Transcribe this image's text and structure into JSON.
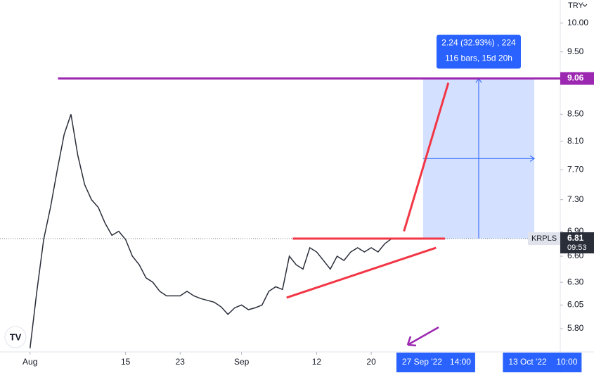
{
  "chart_data": {
    "type": "line",
    "symbol": "KRPLS",
    "currency": "TRY",
    "log_scale": true,
    "x": [
      0,
      1,
      2,
      3,
      4,
      5,
      6,
      7,
      8,
      9,
      10,
      11,
      12,
      13,
      14,
      15,
      16,
      17,
      18,
      19,
      20,
      21,
      22,
      23,
      24,
      25,
      26,
      27,
      28,
      29,
      30,
      31,
      32,
      33,
      34,
      35,
      36,
      37,
      38,
      39,
      40,
      41,
      42,
      43,
      44,
      45,
      46,
      47,
      48,
      49,
      50,
      51,
      52,
      53
    ],
    "series": [
      {
        "color": "#2a2e39",
        "values": [
          5.6,
          6.2,
          6.8,
          7.2,
          7.7,
          8.2,
          8.5,
          7.9,
          7.5,
          7.3,
          7.2,
          7.0,
          6.85,
          6.9,
          6.8,
          6.6,
          6.5,
          6.35,
          6.3,
          6.2,
          6.15,
          6.15,
          6.15,
          6.2,
          6.15,
          6.12,
          6.1,
          6.08,
          6.03,
          5.95,
          6.02,
          6.05,
          6.0,
          6.02,
          6.05,
          6.2,
          6.25,
          6.22,
          6.6,
          6.5,
          6.45,
          6.7,
          6.65,
          6.55,
          6.45,
          6.6,
          6.55,
          6.65,
          6.7,
          6.65,
          6.7,
          6.65,
          6.75,
          6.81
        ]
      }
    ],
    "xlim": [
      -4.4,
      77.7
    ],
    "xticks": [
      {
        "value": 0,
        "label": "Aug"
      },
      {
        "value": 14,
        "label": "15"
      },
      {
        "value": 22,
        "label": "23"
      },
      {
        "value": 31,
        "label": "Sep"
      },
      {
        "value": 42,
        "label": "12"
      },
      {
        "value": 50,
        "label": "20"
      }
    ],
    "ylim": [
      5.565,
      10.42
    ],
    "yticks": [
      {
        "value": 10,
        "label": "10.00"
      },
      {
        "value": 9.5,
        "label": "9.50"
      },
      {
        "value": 8.5,
        "label": "8.50"
      },
      {
        "value": 8.1,
        "label": "8.10"
      },
      {
        "value": 7.7,
        "label": "7.70"
      },
      {
        "value": 7.3,
        "label": "7.30"
      },
      {
        "value": 6.9,
        "label": "6.90"
      },
      {
        "value": 6.6,
        "label": "6.60"
      },
      {
        "value": 6.3,
        "label": "6.30"
      },
      6.05,
      {
        "value": 5.8,
        "label": "5.80"
      }
    ],
    "level_line": {
      "value": 9.06,
      "x_start": 4.1,
      "color": "#9c27b0"
    },
    "last_price": {
      "value": 6.81,
      "countdown": "09:53",
      "color": "#2a2e39"
    },
    "trend_lines": [
      {
        "x": [
          38.5,
          60.8
        ],
        "y": [
          6.81,
          6.81
        ],
        "color": "#f23645"
      },
      {
        "x": [
          37.6,
          59.5
        ],
        "y": [
          6.13,
          6.7
        ],
        "color": "#f23645"
      },
      {
        "x": [
          54.8,
          61.3
        ],
        "y": [
          6.9,
          8.99
        ],
        "color": "#f23645"
      }
    ],
    "measure": {
      "x": [
        57.6,
        73.9
      ],
      "y": [
        6.81,
        9.06
      ],
      "lines": [
        "2.24 (32.93%) , 224",
        "116 bars, 15d 20h"
      ]
    },
    "time_badges": [
      {
        "x": 57.4,
        "date": "27 Sep '22",
        "time": "14:00"
      },
      {
        "x": 73,
        "date": "13 Oct '22",
        "time": "10:00"
      }
    ]
  }
}
